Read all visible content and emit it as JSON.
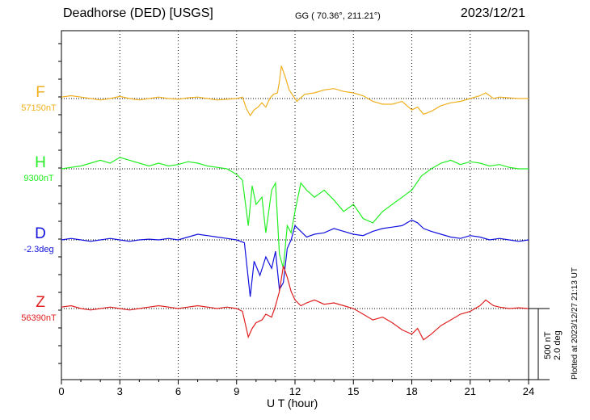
{
  "header": {
    "title_left": "Deadhorse (DED)  [USGS]",
    "title_mid": "GG ( 70.36°, 211.21°)",
    "title_right": "2023/12/21"
  },
  "footer": {
    "plotted_note": "Plotted at 2023/12/27 21:13 UT",
    "scale_line1": "500 nT",
    "scale_line2": "2.0 deg"
  },
  "chart_data": {
    "type": "line",
    "xlabel": "U T (hour)",
    "xlim": [
      0,
      24
    ],
    "xticks": [
      "0",
      "3",
      "6",
      "9",
      "12",
      "15",
      "18",
      "21",
      "24"
    ],
    "grid": true,
    "scale": {
      "nT_per_bar": 500,
      "deg_per_bar": 2.0
    },
    "series": [
      {
        "name": "F",
        "baseline_label": "57150nT",
        "color": "#f0b020",
        "x": [
          0,
          0.5,
          1,
          1.5,
          2,
          2.5,
          3,
          3.5,
          4,
          4.5,
          5,
          5.5,
          6,
          6.5,
          7,
          7.5,
          8,
          8.5,
          9,
          9.3,
          9.5,
          9.7,
          9.9,
          10.1,
          10.3,
          10.5,
          10.7,
          10.9,
          11.1,
          11.2,
          11.3,
          11.5,
          11.7,
          11.9,
          12.1,
          12.5,
          13,
          13.5,
          14,
          14.5,
          15,
          15.5,
          16,
          16.5,
          17,
          17.5,
          18,
          18.3,
          18.6,
          19,
          19.5,
          20,
          20.5,
          21,
          21.5,
          21.8,
          22.2,
          22.5,
          23,
          23.5,
          24
        ],
        "y": [
          10,
          20,
          10,
          0,
          -10,
          0,
          15,
          0,
          -10,
          0,
          10,
          0,
          -5,
          5,
          10,
          0,
          -10,
          -5,
          0,
          10,
          -70,
          -120,
          -80,
          -60,
          -30,
          -60,
          0,
          30,
          40,
          120,
          230,
          150,
          60,
          20,
          -20,
          30,
          40,
          60,
          70,
          50,
          40,
          20,
          -20,
          -40,
          -40,
          -20,
          -80,
          -60,
          -110,
          -90,
          -50,
          -30,
          -20,
          0,
          20,
          40,
          0,
          10,
          5,
          0,
          0
        ]
      },
      {
        "name": "H",
        "baseline_label": "9300nT",
        "color": "#22ee22",
        "x": [
          0,
          0.5,
          1,
          1.5,
          2,
          2.5,
          3,
          3.5,
          4,
          4.5,
          5,
          5.5,
          6,
          6.5,
          7,
          7.5,
          8,
          8.5,
          9,
          9.3,
          9.6,
          9.8,
          10,
          10.3,
          10.5,
          10.8,
          11,
          11.2,
          11.4,
          11.6,
          11.8,
          12,
          12.3,
          12.6,
          13,
          13.5,
          14,
          14.5,
          15,
          15.5,
          16,
          16.5,
          17,
          17.5,
          18,
          18.5,
          19,
          19.5,
          20,
          20.5,
          21,
          21.5,
          22,
          22.5,
          23,
          23.5,
          24
        ],
        "y": [
          0,
          10,
          20,
          40,
          60,
          40,
          80,
          60,
          40,
          20,
          40,
          20,
          30,
          50,
          40,
          20,
          10,
          0,
          -40,
          -80,
          -400,
          -120,
          -250,
          -200,
          -450,
          -150,
          -100,
          -600,
          -700,
          -400,
          -450,
          -300,
          -100,
          -150,
          -200,
          -150,
          -220,
          -300,
          -250,
          -350,
          -380,
          -300,
          -250,
          -200,
          -150,
          -50,
          0,
          40,
          60,
          30,
          50,
          40,
          20,
          30,
          10,
          0,
          0
        ]
      },
      {
        "name": "D",
        "baseline_label": "-2.3deg",
        "color": "#1111dd",
        "x": [
          0,
          0.5,
          1,
          1.5,
          2,
          2.5,
          3,
          3.5,
          4,
          4.5,
          5,
          5.5,
          6,
          6.5,
          7,
          7.5,
          8,
          8.5,
          9,
          9.4,
          9.7,
          9.9,
          10.2,
          10.5,
          10.8,
          11,
          11.2,
          11.4,
          11.6,
          11.8,
          12,
          12.3,
          12.6,
          13,
          13.5,
          14,
          14.5,
          15,
          15.5,
          16,
          16.5,
          17,
          17.5,
          18,
          18.3,
          18.6,
          19,
          19.5,
          20,
          20.5,
          21,
          21.5,
          22,
          22.5,
          23,
          23.5,
          24
        ],
        "y": [
          0,
          10,
          0,
          -10,
          0,
          10,
          0,
          -10,
          0,
          5,
          0,
          10,
          0,
          20,
          40,
          30,
          20,
          10,
          0,
          -20,
          -400,
          -150,
          -250,
          -120,
          -200,
          -80,
          -350,
          -300,
          -60,
          0,
          100,
          60,
          20,
          40,
          50,
          80,
          60,
          40,
          30,
          60,
          80,
          90,
          100,
          140,
          120,
          80,
          60,
          40,
          20,
          10,
          30,
          20,
          0,
          10,
          0,
          -10,
          0
        ]
      },
      {
        "name": "Z",
        "baseline_label": "56390nT",
        "color": "#e02020",
        "x": [
          0,
          0.5,
          1,
          1.5,
          2,
          2.5,
          3,
          3.5,
          4,
          4.5,
          5,
          5.5,
          6,
          6.5,
          7,
          7.5,
          8,
          8.5,
          9,
          9.3,
          9.6,
          9.8,
          10,
          10.3,
          10.5,
          10.8,
          11,
          11.2,
          11.4,
          11.6,
          11.8,
          12,
          12.3,
          12.6,
          13,
          13.5,
          14,
          14.5,
          15,
          15.5,
          16,
          16.5,
          17,
          17.5,
          18,
          18.3,
          18.6,
          19,
          19.5,
          20,
          20.5,
          21,
          21.5,
          21.8,
          22.2,
          22.5,
          23,
          23.5,
          24
        ],
        "y": [
          10,
          20,
          0,
          -10,
          0,
          10,
          0,
          -10,
          0,
          10,
          20,
          10,
          0,
          10,
          20,
          10,
          0,
          10,
          0,
          -20,
          -200,
          -140,
          -100,
          -80,
          -40,
          -60,
          20,
          120,
          300,
          220,
          120,
          60,
          20,
          40,
          60,
          30,
          40,
          20,
          0,
          -40,
          -80,
          -60,
          -100,
          -150,
          -180,
          -140,
          -220,
          -180,
          -120,
          -80,
          -40,
          -20,
          20,
          60,
          20,
          10,
          0,
          5,
          0
        ]
      }
    ]
  }
}
